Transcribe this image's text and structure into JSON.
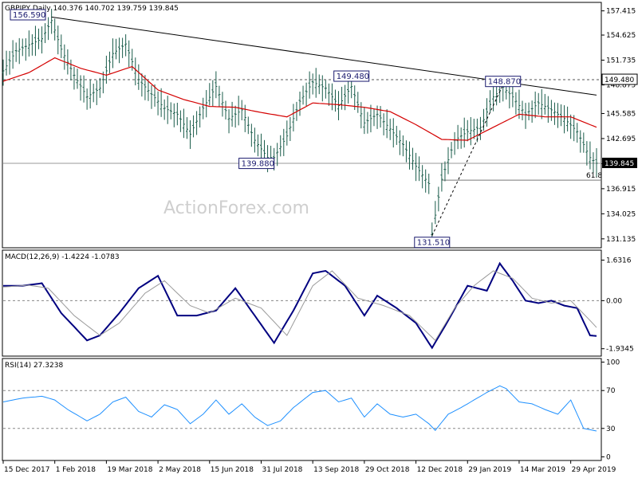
{
  "chart_data": [
    {
      "panel": "price",
      "type": "line",
      "title": "GBPJPY,Daily  140.376 140.702 139.759 139.845",
      "watermark": "ActionForex.com",
      "ylim": [
        130.2,
        158.3
      ],
      "yticks": [
        "157.415",
        "154.625",
        "151.735",
        "148.875",
        "145.585",
        "142.695",
        "139.805",
        "136.915",
        "134.025",
        "131.135"
      ],
      "ytick_values": [
        157.415,
        154.625,
        151.735,
        148.875,
        145.585,
        142.695,
        139.805,
        136.915,
        134.025,
        131.135
      ],
      "last_price_label": "139.845",
      "last_price": 139.845,
      "resistance_label": "149.480",
      "resistance": 149.48,
      "fib_label": "61.8",
      "fib_level": 137.9,
      "x_labels": [
        "15 Dec 2017",
        "1 Feb 2018",
        "19 Mar 2018",
        "2 May 2018",
        "15 Jun 2018",
        "31 Jul 2018",
        "13 Sep 2018",
        "29 Oct 2018",
        "12 Dec 2018",
        "29 Jan 2019",
        "14 Mar 2019",
        "29 Apr 2019"
      ],
      "annotations": [
        {
          "text": "156.590",
          "date_index": 15,
          "value": 156.59
        },
        {
          "text": "139.880",
          "date_index": 83,
          "value": 139.88
        },
        {
          "text": "149.480",
          "date_index": 108,
          "value": 149.48
        },
        {
          "text": "131.510",
          "date_index": 133,
          "value": 131.51
        },
        {
          "text": "148.870",
          "date_index": 155,
          "value": 148.87
        }
      ],
      "series": [
        {
          "name": "close",
          "color": "#000000",
          "x": [
            0,
            4,
            8,
            12,
            15,
            18,
            22,
            26,
            30,
            34,
            38,
            42,
            46,
            50,
            54,
            58,
            62,
            66,
            70,
            74,
            78,
            82,
            84,
            88,
            92,
            96,
            100,
            104,
            108,
            112,
            116,
            120,
            124,
            128,
            132,
            133,
            136,
            140,
            144,
            148,
            152,
            155,
            158,
            162,
            166,
            170,
            174,
            178,
            182,
            184
          ],
          "values": [
            150.5,
            152.8,
            153.5,
            154.2,
            156.3,
            153.0,
            150.0,
            147.5,
            148.5,
            152.5,
            153.6,
            149.5,
            147.8,
            146.2,
            145.5,
            143.2,
            146.2,
            148.7,
            145.0,
            146.0,
            142.5,
            140.5,
            140.5,
            143.0,
            147.0,
            149.2,
            148.5,
            146.5,
            148.7,
            144.5,
            145.5,
            143.8,
            142.0,
            139.5,
            137.5,
            131.8,
            138.0,
            142.5,
            143.5,
            144.0,
            147.5,
            148.6,
            147.5,
            145.5,
            146.8,
            146.0,
            145.0,
            143.5,
            140.5,
            139.85
          ]
        },
        {
          "name": "ma",
          "color": "#d40000",
          "x": [
            0,
            8,
            16,
            24,
            32,
            40,
            48,
            56,
            64,
            72,
            80,
            88,
            96,
            104,
            112,
            120,
            128,
            136,
            144,
            152,
            160,
            168,
            176,
            184
          ],
          "values": [
            149.3,
            150.3,
            152.0,
            150.8,
            150.0,
            151.0,
            148.3,
            147.2,
            146.4,
            146.3,
            145.7,
            145.2,
            146.8,
            146.6,
            146.3,
            145.8,
            144.3,
            142.6,
            142.5,
            144.0,
            145.5,
            145.2,
            145.2,
            144.0
          ]
        }
      ],
      "trendlines": [
        {
          "from": [
            15,
            156.7
          ],
          "to": [
            184,
            147.7
          ],
          "color": "#000000"
        },
        {
          "from": [
            133,
            131.5
          ],
          "to": [
            155,
            148.9
          ],
          "color": "#000000",
          "dashed": true
        }
      ]
    },
    {
      "panel": "macd",
      "type": "line",
      "title": "MACD(12,26,9) -1.4224 -1.0783",
      "ylim": [
        -2.2,
        2.0
      ],
      "yticks": [
        "1.6316",
        "0.00",
        "-1.9345"
      ],
      "ytick_values": [
        1.6316,
        0.0,
        -1.9345
      ],
      "series": [
        {
          "name": "macd",
          "color": "#000080",
          "x": [
            0,
            6,
            12,
            18,
            26,
            30,
            36,
            42,
            48,
            54,
            60,
            66,
            72,
            78,
            84,
            90,
            96,
            100,
            106,
            112,
            116,
            122,
            128,
            133,
            138,
            144,
            150,
            154,
            158,
            162,
            166,
            170,
            174,
            178,
            182,
            184
          ],
          "values": [
            0.6,
            0.6,
            0.7,
            -0.5,
            -1.6,
            -1.4,
            -0.5,
            0.5,
            1.0,
            -0.6,
            -0.6,
            -0.4,
            0.5,
            -0.6,
            -1.7,
            -0.4,
            1.1,
            1.2,
            0.6,
            -0.6,
            0.2,
            -0.3,
            -0.9,
            -1.9,
            -0.8,
            0.6,
            0.4,
            1.5,
            0.8,
            0.0,
            -0.1,
            0.0,
            -0.2,
            -0.3,
            -1.4,
            -1.42
          ]
        },
        {
          "name": "signal",
          "color": "#9a9a9a",
          "x": [
            0,
            8,
            14,
            22,
            30,
            36,
            44,
            50,
            58,
            64,
            72,
            80,
            88,
            96,
            102,
            110,
            118,
            126,
            134,
            140,
            146,
            152,
            158,
            164,
            170,
            176,
            182,
            184
          ],
          "values": [
            0.55,
            0.62,
            0.5,
            -0.6,
            -1.4,
            -0.9,
            0.3,
            0.8,
            -0.2,
            -0.5,
            0.1,
            -0.3,
            -1.4,
            0.6,
            1.2,
            0.1,
            -0.2,
            -0.6,
            -1.6,
            -0.3,
            0.6,
            1.2,
            0.9,
            0.1,
            -0.1,
            0.0,
            -0.8,
            -1.08
          ]
        }
      ]
    },
    {
      "panel": "rsi",
      "type": "line",
      "title": "RSI(14) 27.3238",
      "ylim": [
        -3,
        103
      ],
      "yticks": [
        "100",
        "70",
        "30",
        "0"
      ],
      "ytick_values": [
        100,
        70,
        30,
        0
      ],
      "levels": [
        70,
        30
      ],
      "series": [
        {
          "name": "rsi",
          "color": "#1e90ff",
          "x": [
            0,
            6,
            12,
            16,
            20,
            26,
            30,
            34,
            38,
            42,
            46,
            50,
            54,
            58,
            62,
            66,
            70,
            74,
            78,
            82,
            86,
            90,
            96,
            100,
            104,
            108,
            112,
            116,
            120,
            124,
            128,
            132,
            134,
            138,
            142,
            146,
            150,
            154,
            156,
            160,
            164,
            168,
            172,
            176,
            180,
            184
          ],
          "values": [
            58,
            62,
            64,
            60,
            50,
            38,
            45,
            58,
            63,
            48,
            42,
            55,
            50,
            35,
            45,
            60,
            45,
            56,
            42,
            33,
            38,
            52,
            68,
            70,
            58,
            62,
            42,
            56,
            45,
            42,
            45,
            35,
            28,
            45,
            52,
            60,
            68,
            75,
            72,
            58,
            56,
            50,
            45,
            60,
            30,
            27.3
          ]
        }
      ]
    }
  ]
}
